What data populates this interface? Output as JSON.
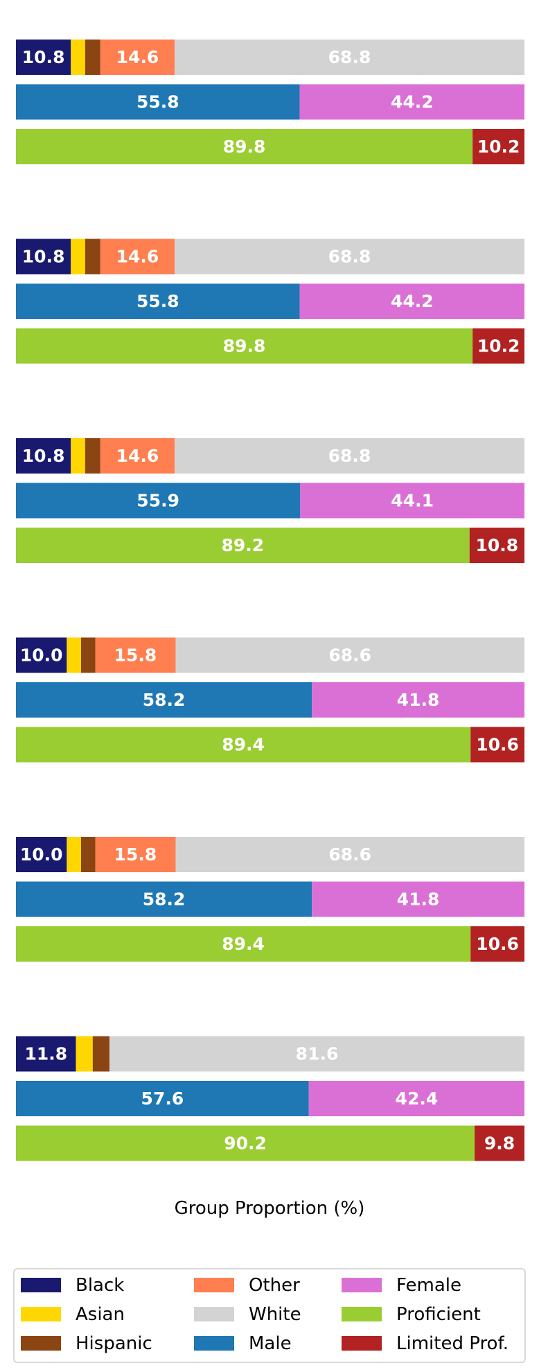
{
  "chart_data": {
    "type": "bar",
    "orientation": "horizontal",
    "stacked": true,
    "xlabel": "Group Proportion (%)",
    "xlim": [
      0,
      100
    ],
    "grid": false,
    "legend_position": "bottom",
    "groups": [
      {
        "race": [
          10.8,
          2.8,
          3.0,
          14.6,
          68.8
        ],
        "sex": [
          55.8,
          44.2
        ],
        "proficiency": [
          89.8,
          10.2
        ],
        "race_labels": [
          "10.8",
          "",
          "",
          "14.6",
          "68.8"
        ],
        "sex_labels": [
          "55.8",
          "44.2"
        ],
        "proficiency_labels": [
          "89.8",
          "10.2"
        ]
      },
      {
        "race": [
          10.8,
          2.8,
          3.0,
          14.6,
          68.8
        ],
        "sex": [
          55.8,
          44.2
        ],
        "proficiency": [
          89.8,
          10.2
        ],
        "race_labels": [
          "10.8",
          "",
          "",
          "14.6",
          "68.8"
        ],
        "sex_labels": [
          "55.8",
          "44.2"
        ],
        "proficiency_labels": [
          "89.8",
          "10.2"
        ]
      },
      {
        "race": [
          10.8,
          2.8,
          3.0,
          14.6,
          68.8
        ],
        "sex": [
          55.9,
          44.1
        ],
        "proficiency": [
          89.2,
          10.8
        ],
        "race_labels": [
          "10.8",
          "",
          "",
          "14.6",
          "68.8"
        ],
        "sex_labels": [
          "55.9",
          "44.1"
        ],
        "proficiency_labels": [
          "89.2",
          "10.8"
        ]
      },
      {
        "race": [
          10.0,
          2.8,
          2.8,
          15.8,
          68.6
        ],
        "sex": [
          58.2,
          41.8
        ],
        "proficiency": [
          89.4,
          10.6
        ],
        "race_labels": [
          "10.0",
          "",
          "",
          "15.8",
          "68.6"
        ],
        "sex_labels": [
          "58.2",
          "41.8"
        ],
        "proficiency_labels": [
          "89.4",
          "10.6"
        ]
      },
      {
        "race": [
          10.0,
          2.8,
          2.8,
          15.8,
          68.6
        ],
        "sex": [
          58.2,
          41.8
        ],
        "proficiency": [
          89.4,
          10.6
        ],
        "race_labels": [
          "10.0",
          "",
          "",
          "15.8",
          "68.6"
        ],
        "sex_labels": [
          "58.2",
          "41.8"
        ],
        "proficiency_labels": [
          "89.4",
          "10.6"
        ]
      },
      {
        "race": [
          11.8,
          3.3,
          3.3,
          0.0,
          81.6
        ],
        "sex": [
          57.6,
          42.4
        ],
        "proficiency": [
          90.2,
          9.8
        ],
        "race_labels": [
          "11.8",
          "",
          "",
          "",
          "81.6"
        ],
        "sex_labels": [
          "57.6",
          "42.4"
        ],
        "proficiency_labels": [
          "90.2",
          "9.8"
        ]
      }
    ],
    "categories": {
      "race": [
        "Black",
        "Asian",
        "Hispanic",
        "Other",
        "White"
      ],
      "sex": [
        "Male",
        "Female"
      ],
      "proficiency": [
        "Proficient",
        "Limited Prof."
      ]
    },
    "colors": {
      "Black": "#191970",
      "Asian": "#FFD700",
      "Hispanic": "#8B4513",
      "Other": "#FF7F50",
      "White": "#D3D3D3",
      "Male": "#1F77B4",
      "Female": "#DA70D6",
      "Proficient": "#9ACD32",
      "Limited Prof.": "#B22222"
    },
    "legend": [
      "Black",
      "Asian",
      "Hispanic",
      "Other",
      "White",
      "Male",
      "Female",
      "Proficient",
      "Limited Prof."
    ]
  }
}
